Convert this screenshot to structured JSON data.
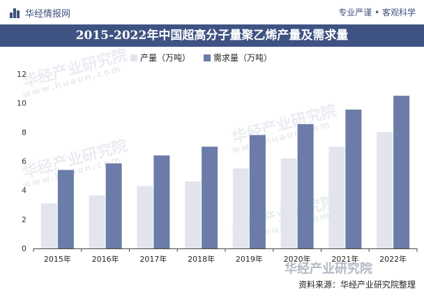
{
  "header": {
    "logo_text": "华经情报网",
    "slogan": "专业严谨 • 客观科学"
  },
  "title": "2015-2022年中国超高分子量聚乙烯产量及需求量",
  "watermark": {
    "text": "华经产业研究院",
    "url": "www.huaon.com"
  },
  "footer": {
    "source": "资料来源：华经产业研究院整理"
  },
  "colors": {
    "title_band": "#3f5383",
    "series_production": "#e2e5ee",
    "series_demand": "#6b7ca8"
  },
  "chart_data": {
    "type": "bar",
    "categories": [
      "2015年",
      "2016年",
      "2017年",
      "2018年",
      "2019年",
      "2020年",
      "2021年",
      "2022年"
    ],
    "series": [
      {
        "name": "产量（万吨）",
        "values": [
          3.1,
          3.65,
          4.3,
          4.6,
          5.5,
          6.2,
          7.0,
          8.0
        ]
      },
      {
        "name": "需求量（万吨）",
        "values": [
          5.4,
          5.85,
          6.4,
          7.0,
          7.8,
          8.55,
          9.55,
          10.5
        ]
      }
    ],
    "ylim": [
      0,
      12
    ],
    "yticks": [
      0,
      2,
      4,
      6,
      8,
      10,
      12
    ],
    "grid": false,
    "legend": "top"
  }
}
